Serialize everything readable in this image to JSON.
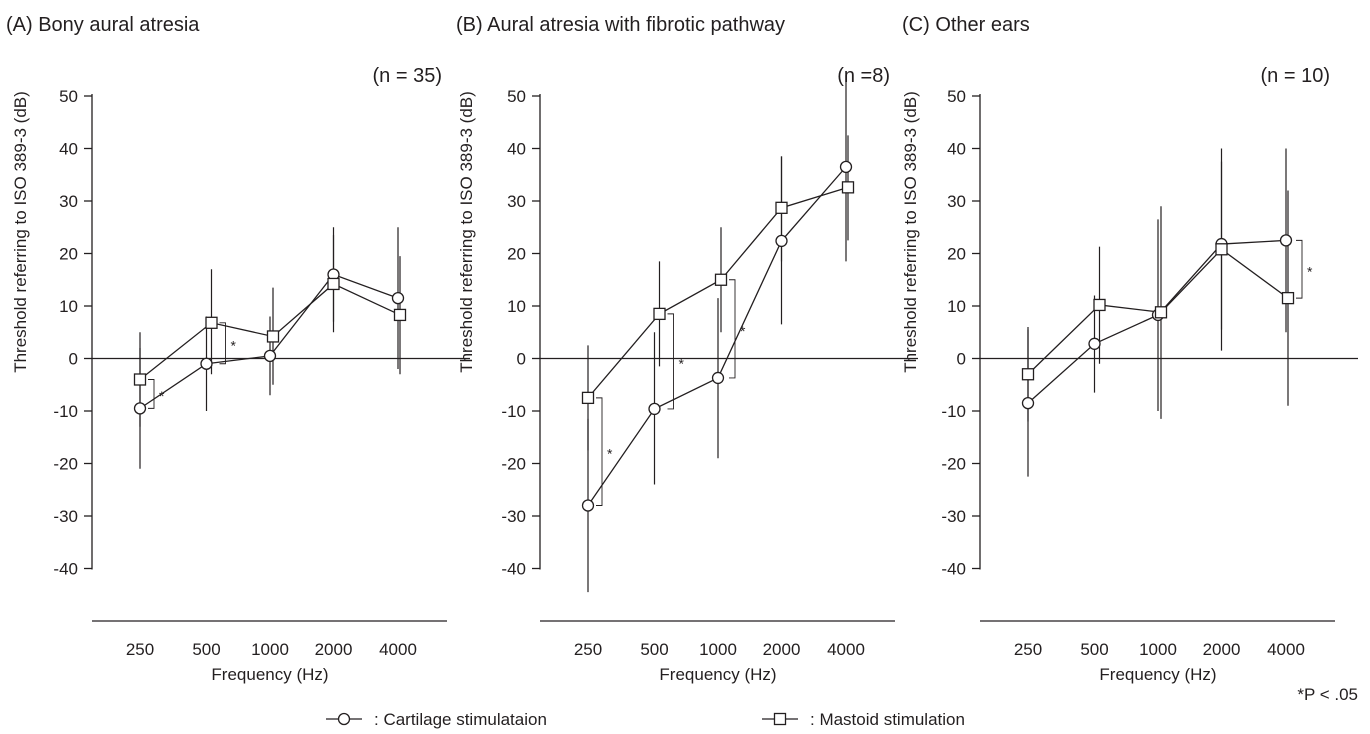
{
  "chart_data": [
    {
      "type": "line",
      "title": "(A) Bony aural atresia",
      "n_label": "(n = 35)",
      "xlabel": "Frequency (Hz)",
      "ylabel": "Threshold referring to ISO 389-3 (dB)",
      "categories": [
        "250",
        "500",
        "1000",
        "2000",
        "4000"
      ],
      "y_ticks": [
        "50",
        "40",
        "30",
        "20",
        "10",
        "0",
        "-10",
        "-20",
        "-30",
        "-40"
      ],
      "ylim": [
        -45,
        52
      ],
      "series": [
        {
          "name": "Cartilage stimulataion",
          "marker": "circle",
          "values": [
            -9.5,
            -1,
            0.5,
            16,
            11.5
          ],
          "err_low": [
            -21,
            -10,
            -7,
            7,
            -2
          ],
          "err_high": [
            2,
            8,
            8,
            25,
            25
          ]
        },
        {
          "name": "Mastoid stimulation",
          "marker": "square",
          "values": [
            -4,
            6.8,
            4.2,
            14.2,
            8.3
          ],
          "err_low": [
            -13,
            -3,
            -5,
            5,
            -3
          ],
          "err_high": [
            5,
            17,
            13.5,
            23.5,
            19.5
          ]
        }
      ],
      "significance": [
        {
          "category_index": 0,
          "label": "*"
        },
        {
          "category_index": 1,
          "label": "*"
        }
      ]
    },
    {
      "type": "line",
      "title": "(B) Aural atresia with fibrotic pathway",
      "n_label": "(n =8)",
      "xlabel": "Frequency (Hz)",
      "ylabel": "Threshold referring to ISO 389-3 (dB)",
      "categories": [
        "250",
        "500",
        "1000",
        "2000",
        "4000"
      ],
      "y_ticks": [
        "50",
        "40",
        "30",
        "20",
        "10",
        "0",
        "-10",
        "-20",
        "-30",
        "-40"
      ],
      "ylim": [
        -45,
        52
      ],
      "series": [
        {
          "name": "Cartilage stimulataion",
          "marker": "circle",
          "values": [
            -28,
            -9.6,
            -3.7,
            22.4,
            36.5
          ],
          "err_low": [
            -44.5,
            -24,
            -19,
            6.5,
            18.5
          ],
          "err_high": [
            -11.5,
            5,
            11.5,
            38.5,
            54
          ]
        },
        {
          "name": "Mastoid stimulation",
          "marker": "square",
          "values": [
            -7.5,
            8.5,
            15,
            28.7,
            32.6
          ],
          "err_low": [
            -17.5,
            -1.5,
            5,
            18.5,
            22.5
          ],
          "err_high": [
            2.5,
            18.5,
            25,
            38.5,
            42.5
          ]
        }
      ],
      "significance": [
        {
          "category_index": 0,
          "label": "*"
        },
        {
          "category_index": 1,
          "label": "*"
        },
        {
          "category_index": 2,
          "label": "*"
        }
      ]
    },
    {
      "type": "line",
      "title": "(C) Other ears",
      "n_label": "(n = 10)",
      "xlabel": "Frequency (Hz)",
      "ylabel": "Threshold referring to ISO 389-3 (dB)",
      "categories": [
        "250",
        "500",
        "1000",
        "2000",
        "4000"
      ],
      "y_ticks": [
        "50",
        "40",
        "30",
        "20",
        "10",
        "0",
        "-10",
        "-20",
        "-30",
        "-40"
      ],
      "ylim": [
        -45,
        52
      ],
      "series": [
        {
          "name": "Cartilage stimulataion",
          "marker": "circle",
          "values": [
            -8.5,
            2.8,
            8.3,
            21.8,
            22.5
          ],
          "err_low": [
            -22.5,
            -6.5,
            -10,
            5.5,
            5
          ],
          "err_high": [
            5.5,
            12,
            26.5,
            37.5,
            40
          ]
        },
        {
          "name": "Mastoid stimulation",
          "marker": "square",
          "values": [
            -3,
            10.2,
            8.8,
            20.8,
            11.5
          ],
          "err_low": [
            -12,
            -1,
            -11.5,
            1.5,
            -9
          ],
          "err_high": [
            6,
            21.3,
            29,
            40,
            32
          ]
        }
      ],
      "significance": [
        {
          "category_index": 4,
          "label": "*"
        }
      ]
    }
  ],
  "legend": {
    "cartilage_label": ": Cartilage stimulataion",
    "mastoid_label": ": Mastoid stimulation",
    "significance_note": "*P < .05",
    "placement": "bottom"
  }
}
